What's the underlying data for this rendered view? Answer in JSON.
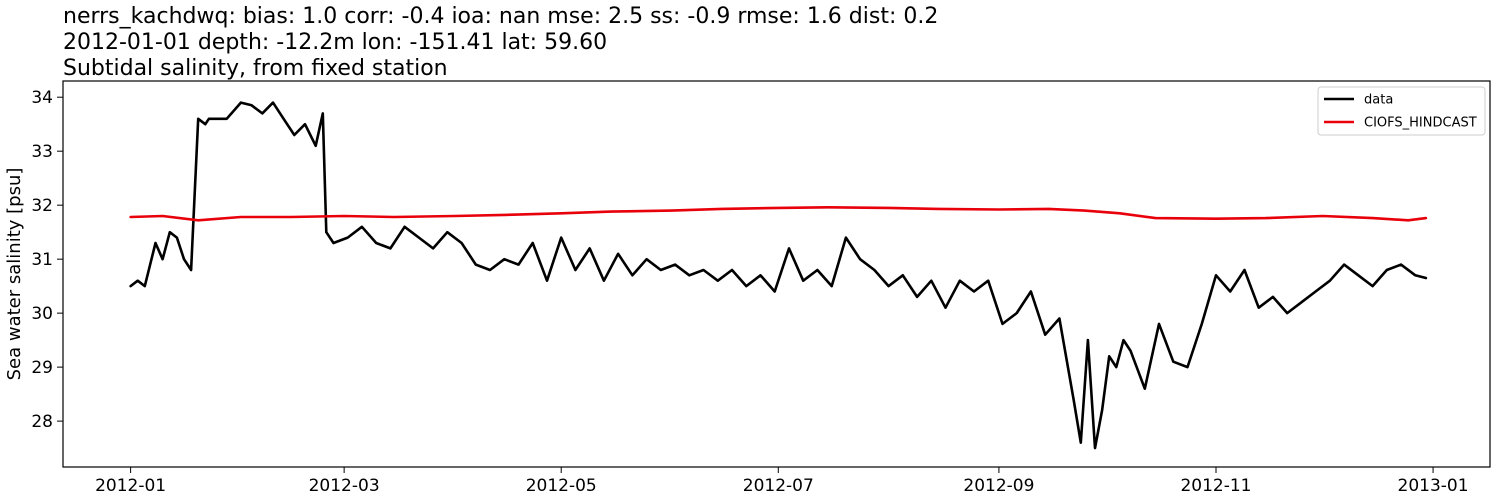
{
  "chart_data": {
    "type": "line",
    "title_lines": [
      "nerrs_kachdwq: bias: 1.0  corr: -0.4  ioa: nan  mse: 2.5  ss: -0.9  rmse: 1.6  dist: 0.2",
      "2012-01-01 depth: -12.2m lon: -151.41 lat: 59.60",
      "Subtidal salinity, from fixed station"
    ],
    "xlabel": "",
    "ylabel": "Sea water salinity [psu]",
    "xlim": [
      "2011-12-13",
      "2013-01-17"
    ],
    "ylim": [
      27.15,
      34.3
    ],
    "x_ticks": [
      "2012-01-01",
      "2012-03-01",
      "2012-05-01",
      "2012-07-01",
      "2012-09-01",
      "2012-11-01",
      "2013-01-01"
    ],
    "x_tick_labels": [
      "2012-01",
      "2012-03",
      "2012-05",
      "2012-07",
      "2012-09",
      "2012-11",
      "2013-01"
    ],
    "y_ticks": [
      28,
      29,
      30,
      31,
      32,
      33,
      34
    ],
    "y_tick_labels": [
      "28",
      "29",
      "30",
      "31",
      "32",
      "33",
      "34"
    ],
    "grid": false,
    "legend_position": "top-right",
    "series": [
      {
        "name": "data",
        "color": "#000000",
        "x": [
          "2012-01-01",
          "2012-01-03",
          "2012-01-05",
          "2012-01-08",
          "2012-01-10",
          "2012-01-12",
          "2012-01-14",
          "2012-01-16",
          "2012-01-18",
          "2012-01-20",
          "2012-01-22",
          "2012-01-23",
          "2012-01-25",
          "2012-01-28",
          "2012-02-01",
          "2012-02-04",
          "2012-02-07",
          "2012-02-10",
          "2012-02-13",
          "2012-02-16",
          "2012-02-19",
          "2012-02-22",
          "2012-02-24",
          "2012-02-25",
          "2012-02-27",
          "2012-03-02",
          "2012-03-06",
          "2012-03-10",
          "2012-03-14",
          "2012-03-18",
          "2012-03-22",
          "2012-03-26",
          "2012-03-30",
          "2012-04-03",
          "2012-04-07",
          "2012-04-11",
          "2012-04-15",
          "2012-04-19",
          "2012-04-23",
          "2012-04-27",
          "2012-05-01",
          "2012-05-05",
          "2012-05-09",
          "2012-05-13",
          "2012-05-17",
          "2012-05-21",
          "2012-05-25",
          "2012-05-29",
          "2012-06-02",
          "2012-06-06",
          "2012-06-10",
          "2012-06-14",
          "2012-06-18",
          "2012-06-22",
          "2012-06-26",
          "2012-06-30",
          "2012-07-04",
          "2012-07-08",
          "2012-07-12",
          "2012-07-16",
          "2012-07-20",
          "2012-07-24",
          "2012-07-28",
          "2012-08-01",
          "2012-08-05",
          "2012-08-09",
          "2012-08-13",
          "2012-08-17",
          "2012-08-21",
          "2012-08-25",
          "2012-08-29",
          "2012-09-02",
          "2012-09-06",
          "2012-09-10",
          "2012-09-14",
          "2012-09-18",
          "2012-09-22",
          "2012-09-24",
          "2012-09-26",
          "2012-09-28",
          "2012-09-30",
          "2012-10-02",
          "2012-10-04",
          "2012-10-06",
          "2012-10-08",
          "2012-10-12",
          "2012-10-16",
          "2012-10-20",
          "2012-10-24",
          "2012-10-28",
          "2012-11-01",
          "2012-11-05",
          "2012-11-09",
          "2012-11-13",
          "2012-11-17",
          "2012-11-21",
          "2012-11-25",
          "2012-11-29",
          "2012-12-03",
          "2012-12-07",
          "2012-12-11",
          "2012-12-15",
          "2012-12-19",
          "2012-12-23",
          "2012-12-27",
          "2012-12-30"
        ],
        "y": [
          30.5,
          30.6,
          30.5,
          31.3,
          31.0,
          31.5,
          31.4,
          31.0,
          30.8,
          33.6,
          33.5,
          33.6,
          33.6,
          33.6,
          33.9,
          33.85,
          33.7,
          33.9,
          33.6,
          33.3,
          33.5,
          33.1,
          33.7,
          31.5,
          31.3,
          31.4,
          31.6,
          31.3,
          31.2,
          31.6,
          31.4,
          31.2,
          31.5,
          31.3,
          30.9,
          30.8,
          31.0,
          30.9,
          31.3,
          30.6,
          31.4,
          30.8,
          31.2,
          30.6,
          31.1,
          30.7,
          31.0,
          30.8,
          30.9,
          30.7,
          30.8,
          30.6,
          30.8,
          30.5,
          30.7,
          30.4,
          31.2,
          30.6,
          30.8,
          30.5,
          31.4,
          31.0,
          30.8,
          30.5,
          30.7,
          30.3,
          30.6,
          30.1,
          30.6,
          30.4,
          30.6,
          29.8,
          30.0,
          30.4,
          29.6,
          29.9,
          28.4,
          27.6,
          29.5,
          27.5,
          28.2,
          29.2,
          29.0,
          29.5,
          29.3,
          28.6,
          29.8,
          29.1,
          29.0,
          29.8,
          30.7,
          30.4,
          30.8,
          30.1,
          30.3,
          30.0,
          30.2,
          30.4,
          30.6,
          30.9,
          30.7,
          30.5,
          30.8,
          30.9,
          30.7,
          30.65
        ]
      },
      {
        "name": "CIOFS_HINDCAST",
        "color": "#e8000b",
        "x": [
          "2012-01-01",
          "2012-01-10",
          "2012-01-20",
          "2012-02-01",
          "2012-02-15",
          "2012-03-01",
          "2012-03-15",
          "2012-04-01",
          "2012-04-15",
          "2012-05-01",
          "2012-05-15",
          "2012-06-01",
          "2012-06-15",
          "2012-07-01",
          "2012-07-15",
          "2012-08-01",
          "2012-08-15",
          "2012-09-01",
          "2012-09-15",
          "2012-09-25",
          "2012-10-05",
          "2012-10-15",
          "2012-11-01",
          "2012-11-15",
          "2012-12-01",
          "2012-12-15",
          "2012-12-25",
          "2012-12-30"
        ],
        "y": [
          31.78,
          31.8,
          31.72,
          31.78,
          31.78,
          31.8,
          31.78,
          31.8,
          31.82,
          31.85,
          31.88,
          31.9,
          31.93,
          31.95,
          31.96,
          31.95,
          31.93,
          31.92,
          31.93,
          31.9,
          31.85,
          31.76,
          31.75,
          31.76,
          31.8,
          31.76,
          31.72,
          31.76
        ]
      }
    ]
  }
}
